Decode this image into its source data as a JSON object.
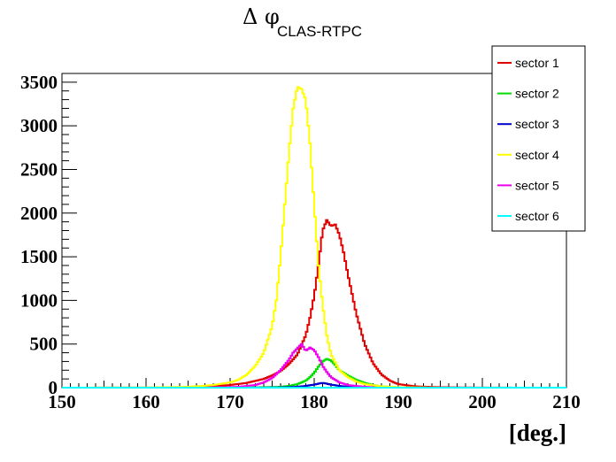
{
  "chart_data": {
    "type": "line",
    "title_main": "Δ φ",
    "title_sub": "CLAS-RTPC",
    "xlabel": "[deg.]",
    "ylabel": "",
    "xlim": [
      150,
      210
    ],
    "ylim": [
      0,
      3600
    ],
    "x_ticks": [
      150,
      160,
      170,
      180,
      190,
      200,
      210
    ],
    "x_tick_labels": [
      "150",
      "160",
      "170",
      "180",
      "190",
      "200",
      "210"
    ],
    "y_ticks": [
      0,
      500,
      1000,
      1500,
      2000,
      2500,
      3000,
      3500
    ],
    "y_tick_labels": [
      "0",
      "500",
      "1000",
      "1500",
      "2000",
      "2500",
      "3000",
      "3500"
    ],
    "legend_position": "top-right",
    "series": [
      {
        "name": "sector 1",
        "color": "#e00000",
        "x": [
          150,
          162,
          166,
          168,
          170,
          172,
          174,
          175,
          176,
          177,
          178,
          179,
          179.5,
          180,
          180.5,
          181,
          181.5,
          182,
          182.5,
          183,
          183.5,
          184,
          185,
          186,
          187,
          188,
          189,
          190,
          192,
          195,
          200,
          210
        ],
        "y": [
          0,
          2,
          8,
          15,
          30,
          55,
          100,
          140,
          190,
          270,
          380,
          600,
          800,
          1050,
          1400,
          1800,
          1920,
          1850,
          1870,
          1750,
          1550,
          1300,
          850,
          500,
          280,
          150,
          80,
          40,
          15,
          5,
          1,
          0
        ]
      },
      {
        "name": "sector 2",
        "color": "#00dd00",
        "x": [
          150,
          170,
          174,
          176,
          177,
          178,
          179,
          179.5,
          180,
          180.5,
          181,
          181.5,
          182,
          182.5,
          183,
          184,
          185,
          186,
          187,
          188,
          190,
          193,
          210
        ],
        "y": [
          0,
          0,
          5,
          10,
          20,
          40,
          80,
          120,
          170,
          240,
          300,
          330,
          310,
          260,
          200,
          140,
          90,
          55,
          30,
          15,
          5,
          0,
          0
        ]
      },
      {
        "name": "sector 3",
        "color": "#0000cc",
        "x": [
          150,
          172,
          176,
          178,
          179,
          180,
          180.5,
          181,
          181.5,
          182,
          183,
          184,
          186,
          190,
          210
        ],
        "y": [
          0,
          0,
          3,
          10,
          20,
          35,
          45,
          55,
          45,
          35,
          20,
          10,
          3,
          0,
          0
        ]
      },
      {
        "name": "sector 4",
        "color": "#ffff00",
        "x": [
          150,
          160,
          164,
          166,
          168,
          170,
          171,
          172,
          173,
          174,
          175,
          175.5,
          176,
          176.5,
          177,
          177.5,
          178,
          178.5,
          179,
          179.5,
          180,
          180.5,
          181,
          181.5,
          182,
          183,
          184,
          185,
          186,
          188,
          190,
          195,
          210
        ],
        "y": [
          0,
          2,
          8,
          15,
          30,
          60,
          90,
          150,
          250,
          400,
          700,
          1000,
          1500,
          2100,
          2700,
          3200,
          3450,
          3420,
          3300,
          2800,
          2100,
          1400,
          950,
          600,
          380,
          200,
          120,
          70,
          40,
          15,
          5,
          0,
          0
        ]
      },
      {
        "name": "sector 5",
        "color": "#ee00ee",
        "x": [
          150,
          165,
          169,
          171,
          173,
          174,
          175,
          176,
          177,
          177.5,
          178,
          178.5,
          179,
          179.5,
          180,
          180.5,
          181,
          181.5,
          182,
          183,
          184,
          186,
          188,
          192,
          210
        ],
        "y": [
          0,
          0,
          5,
          10,
          30,
          60,
          110,
          200,
          320,
          400,
          450,
          500,
          420,
          460,
          430,
          350,
          250,
          180,
          120,
          60,
          30,
          10,
          3,
          0,
          0
        ]
      },
      {
        "name": "sector 6",
        "color": "#00ffff",
        "x": [
          150,
          210
        ],
        "y": [
          0,
          0
        ]
      }
    ]
  }
}
